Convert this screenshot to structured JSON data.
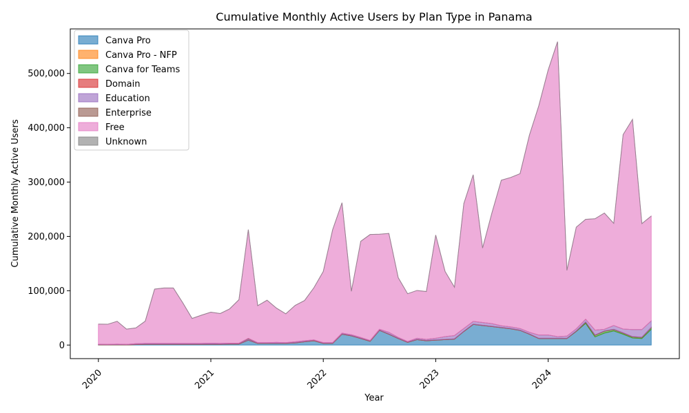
{
  "chart_data": {
    "type": "area",
    "stacked": true,
    "title": "Cumulative Monthly Active Users by Plan Type in Panama",
    "xlabel": "Year",
    "ylabel": "Cumulative Monthly Active Users",
    "ylim": [
      -25000,
      582000
    ],
    "xlim": [
      "2019-10-01",
      "2025-03-01"
    ],
    "x_ticks": [
      "2020",
      "2021",
      "2022",
      "2023",
      "2024"
    ],
    "y_ticks": [
      "0",
      "100,000",
      "200,000",
      "300,000",
      "400,000",
      "500,000"
    ],
    "legend_position": "upper-left",
    "grid": false,
    "x": [
      "2020-01",
      "2020-02",
      "2020-03",
      "2020-04",
      "2020-05",
      "2020-06",
      "2020-07",
      "2020-08",
      "2020-09",
      "2020-10",
      "2020-11",
      "2020-12",
      "2021-01",
      "2021-02",
      "2021-03",
      "2021-04",
      "2021-05",
      "2021-06",
      "2021-07",
      "2021-08",
      "2021-09",
      "2021-10",
      "2021-11",
      "2021-12",
      "2022-01",
      "2022-02",
      "2022-03",
      "2022-04",
      "2022-05",
      "2022-06",
      "2022-07",
      "2022-08",
      "2022-09",
      "2022-10",
      "2022-11",
      "2022-12",
      "2023-01",
      "2023-02",
      "2023-03",
      "2023-04",
      "2023-05",
      "2023-06",
      "2023-07",
      "2023-08",
      "2023-09",
      "2023-10",
      "2023-11",
      "2023-12",
      "2024-01",
      "2024-02",
      "2024-03",
      "2024-04",
      "2024-05",
      "2024-06",
      "2024-07",
      "2024-08",
      "2024-09",
      "2024-10",
      "2024-11",
      "2024-12"
    ],
    "series": [
      {
        "name": "Canva Pro",
        "color": "#1f77b4",
        "values": [
          500,
          300,
          700,
          300,
          1000,
          1500,
          1500,
          1500,
          1500,
          1500,
          1500,
          1500,
          1500,
          1500,
          2000,
          2000,
          9000,
          3000,
          3000,
          3000,
          3000,
          4000,
          6000,
          8000,
          3000,
          3000,
          20000,
          17000,
          12000,
          7000,
          27000,
          20000,
          12000,
          5000,
          10000,
          8000,
          9000,
          10000,
          11000,
          25000,
          38000,
          36000,
          34000,
          32000,
          30000,
          27000,
          20000,
          12000,
          12000,
          12000,
          12000,
          25000,
          40000,
          15000,
          22000,
          26000,
          20000,
          13000,
          12000,
          29000
        ]
      },
      {
        "name": "Canva Pro - NFP",
        "color": "#ff7f0e",
        "values": [
          0,
          0,
          0,
          0,
          0,
          0,
          0,
          0,
          0,
          0,
          0,
          0,
          0,
          0,
          0,
          0,
          0,
          0,
          0,
          0,
          0,
          0,
          0,
          0,
          0,
          0,
          0,
          0,
          0,
          0,
          0,
          0,
          0,
          0,
          0,
          0,
          0,
          0,
          0,
          0,
          0,
          0,
          0,
          0,
          0,
          0,
          0,
          0,
          0,
          0,
          0,
          0,
          0,
          0,
          0,
          0,
          0,
          0,
          0,
          0
        ]
      },
      {
        "name": "Canva for Teams",
        "color": "#2ca02c",
        "values": [
          0,
          0,
          0,
          0,
          0,
          0,
          0,
          0,
          0,
          0,
          0,
          0,
          0,
          0,
          0,
          0,
          0,
          0,
          0,
          0,
          0,
          0,
          0,
          0,
          0,
          0,
          0,
          0,
          0,
          0,
          0,
          0,
          0,
          0,
          0,
          0,
          0,
          0,
          0,
          0,
          0,
          0,
          0,
          0,
          0,
          0,
          0,
          0,
          0,
          0,
          0,
          500,
          2000,
          3000,
          3500,
          2500,
          2000,
          2000,
          2000,
          3000
        ]
      },
      {
        "name": "Domain",
        "color": "#d62728",
        "values": [
          500,
          500,
          500,
          500,
          500,
          500,
          500,
          500,
          500,
          500,
          500,
          500,
          500,
          500,
          500,
          500,
          500,
          500,
          500,
          500,
          500,
          500,
          500,
          500,
          500,
          500,
          500,
          500,
          500,
          500,
          500,
          500,
          500,
          500,
          500,
          500,
          500,
          500,
          500,
          500,
          500,
          500,
          500,
          500,
          500,
          500,
          500,
          500,
          500,
          500,
          500,
          500,
          500,
          500,
          500,
          500,
          500,
          500,
          500,
          500
        ]
      },
      {
        "name": "Education",
        "color": "#9467bd",
        "values": [
          500,
          500,
          500,
          500,
          1000,
          1000,
          1000,
          1000,
          1000,
          1000,
          1000,
          1000,
          1500,
          1000,
          1000,
          1000,
          2000,
          1000,
          1000,
          1500,
          1000,
          1500,
          1500,
          1000,
          1000,
          1000,
          1500,
          1500,
          1500,
          1000,
          1500,
          3000,
          1500,
          1000,
          2000,
          2000,
          3000,
          5000,
          6000,
          5000,
          5000,
          5000,
          5000,
          3000,
          3000,
          3000,
          3000,
          6000,
          6000,
          3000,
          4000,
          4000,
          5000,
          9000,
          3000,
          7000,
          7000,
          13000,
          14000,
          12000
        ]
      },
      {
        "name": "Enterprise",
        "color": "#8c564b",
        "values": [
          0,
          0,
          0,
          0,
          0,
          0,
          0,
          0,
          0,
          0,
          0,
          0,
          0,
          0,
          0,
          0,
          1000,
          0,
          0,
          0,
          0,
          0,
          0,
          0,
          0,
          0,
          0,
          0,
          0,
          0,
          0,
          0,
          0,
          0,
          0,
          0,
          0,
          0,
          0,
          0,
          0,
          0,
          0,
          0,
          0,
          0,
          0,
          0,
          0,
          0,
          0,
          0,
          0,
          0,
          0,
          0,
          0,
          0,
          0,
          0
        ]
      },
      {
        "name": "Free",
        "color": "#e377c2",
        "values": [
          37000,
          37000,
          42000,
          28000,
          29000,
          41000,
          100000,
          102000,
          102000,
          75000,
          46000,
          52000,
          57000,
          55000,
          63000,
          80000,
          200000,
          68000,
          78000,
          63000,
          53000,
          67000,
          74000,
          96000,
          131000,
          208000,
          240000,
          80000,
          177000,
          195000,
          175000,
          182000,
          110000,
          88000,
          88000,
          88000,
          190000,
          120000,
          89000,
          230000,
          270000,
          137000,
          204000,
          268000,
          275000,
          285000,
          363000,
          422000,
          488000,
          543000,
          121000,
          187000,
          184000,
          205000,
          214000,
          188000,
          358000,
          387000,
          195000,
          193000
        ]
      },
      {
        "name": "Unknown",
        "color": "#7f7f7f",
        "values": [
          0,
          0,
          0,
          0,
          0,
          0,
          0,
          0,
          0,
          0,
          0,
          0,
          0,
          0,
          0,
          0,
          0,
          0,
          0,
          0,
          0,
          0,
          0,
          0,
          0,
          0,
          0,
          0,
          0,
          0,
          0,
          0,
          0,
          0,
          0,
          0,
          0,
          0,
          0,
          0,
          0,
          0,
          0,
          0,
          0,
          0,
          0,
          0,
          0,
          0,
          0,
          0,
          0,
          0,
          0,
          0,
          0,
          0,
          0,
          0
        ]
      }
    ]
  }
}
